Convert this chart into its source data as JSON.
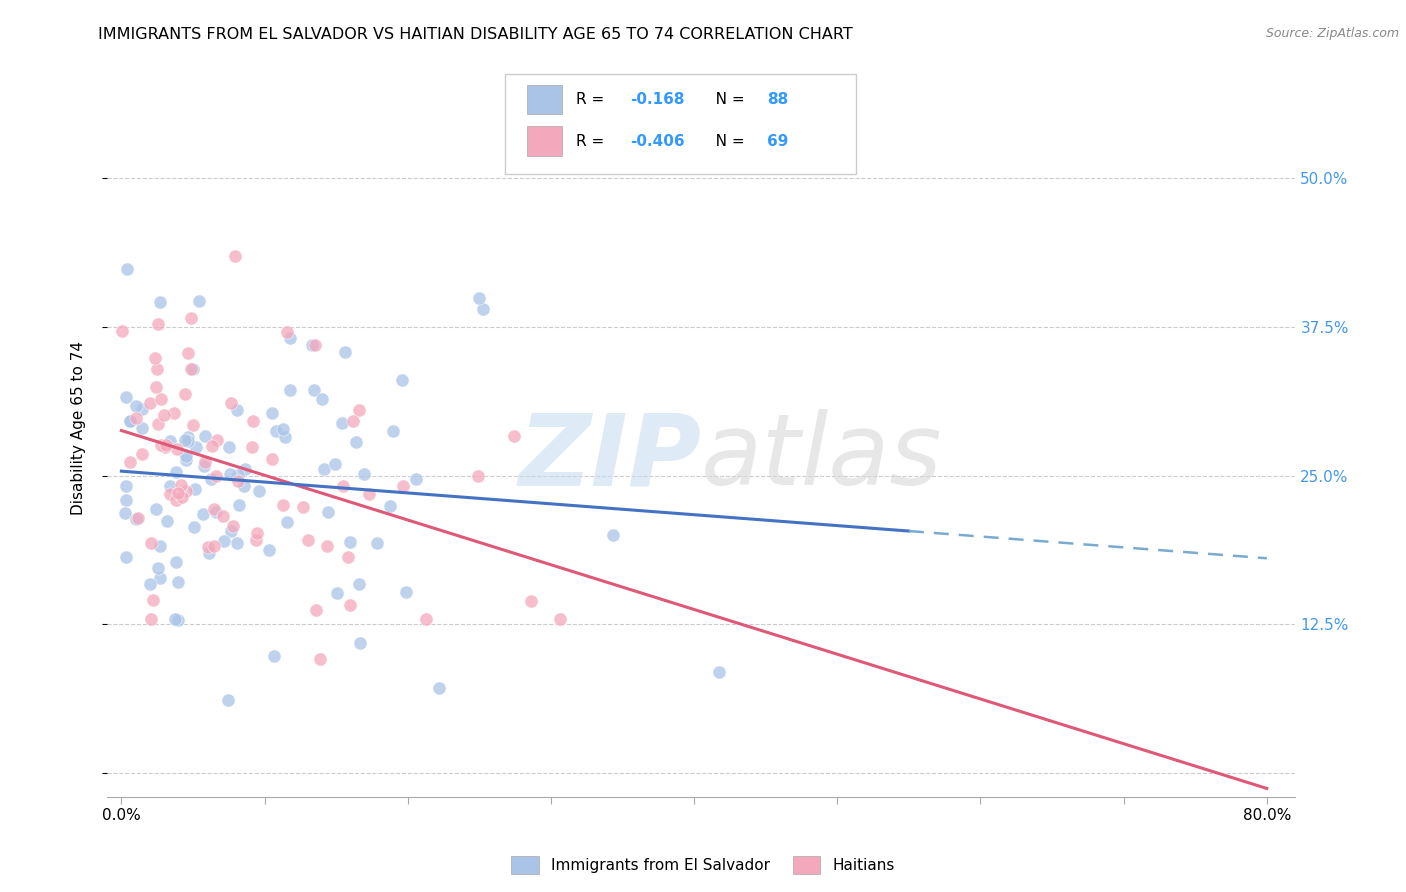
{
  "title": "IMMIGRANTS FROM EL SALVADOR VS HAITIAN DISABILITY AGE 65 TO 74 CORRELATION CHART",
  "source": "Source: ZipAtlas.com",
  "ylabel": "Disability Age 65 to 74",
  "color_salvador": "#aac4e8",
  "color_haiti": "#f4a8bc",
  "trendline_salvador_solid": "#4472c4",
  "trendline_salvador_dash": "#7aaad0",
  "trendline_haiti": "#e05878",
  "legend_label1": "Immigrants from El Salvador",
  "legend_label2": "Haitians",
  "r1": "-0.168",
  "n1": "88",
  "r2": "-0.406",
  "n2": "69",
  "r_color": "#3399ff",
  "watermark_zip_color": "#c8ddf0",
  "watermark_atlas_color": "#d8d8d8"
}
